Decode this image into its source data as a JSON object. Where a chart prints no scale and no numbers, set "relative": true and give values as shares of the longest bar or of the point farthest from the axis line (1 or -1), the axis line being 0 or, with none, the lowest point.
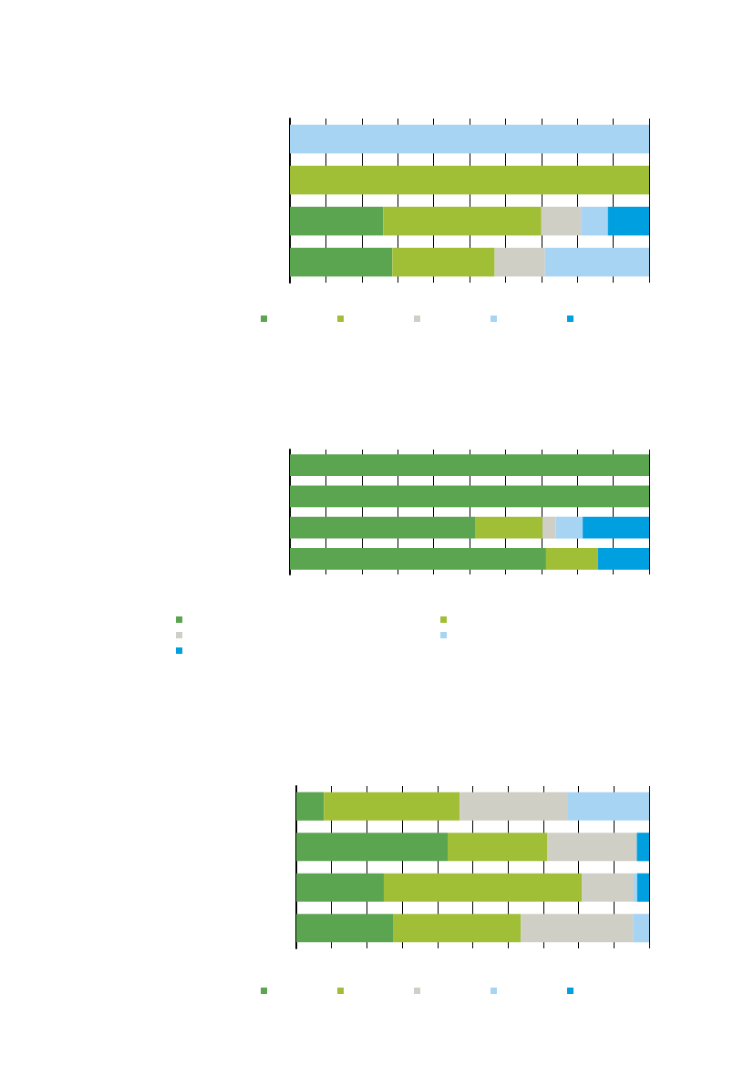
{
  "chart_data": [
    {
      "type": "bar",
      "orientation": "horizontal",
      "stacked": true,
      "relative": true,
      "grid": "x",
      "categories": [
        null,
        null,
        null,
        null
      ],
      "series": [
        {
          "color": "#5ca550",
          "values": [
            0,
            0,
            0.26,
            0.285
          ]
        },
        {
          "color": "#a0be36",
          "values": [
            0,
            1,
            0.44,
            0.285
          ]
        },
        {
          "color": "#cfcfc5",
          "values": [
            0,
            0,
            0.11,
            0.14
          ]
        },
        {
          "color": "#a8d4f4",
          "values": [
            1,
            0,
            0.075,
            0.29
          ]
        },
        {
          "color": "#009fe0",
          "values": [
            0,
            0,
            0.115,
            0
          ]
        }
      ]
    },
    {
      "type": "bar",
      "orientation": "horizontal",
      "stacked": true,
      "relative": true,
      "grid": "x",
      "categories": [
        null,
        null,
        null,
        null
      ],
      "series": [
        {
          "color": "#5ca550",
          "values": [
            1,
            1,
            0.517,
            0.713
          ]
        },
        {
          "color": "#a0be36",
          "values": [
            0,
            0,
            0.186,
            0.144
          ]
        },
        {
          "color": "#cfcfc5",
          "values": [
            0,
            0,
            0.037,
            0
          ]
        },
        {
          "color": "#a8d4f4",
          "values": [
            0,
            0,
            0.075,
            0
          ]
        },
        {
          "color": "#009fe0",
          "values": [
            0,
            0,
            0.185,
            0.143
          ]
        }
      ]
    },
    {
      "type": "bar",
      "orientation": "horizontal",
      "stacked": true,
      "relative": true,
      "grid": "x",
      "categories": [
        null,
        null,
        null,
        null
      ],
      "series": [
        {
          "color": "#5ca550",
          "values": [
            0.078,
            0.429,
            0.248,
            0.274
          ]
        },
        {
          "color": "#a0be36",
          "values": [
            0.385,
            0.283,
            0.561,
            0.362
          ]
        },
        {
          "color": "#cfcfc5",
          "values": [
            0.307,
            0.253,
            0.147,
            0.318
          ]
        },
        {
          "color": "#a8d4f4",
          "values": [
            0.23,
            0,
            0.01,
            0.046
          ]
        },
        {
          "color": "#009fe0",
          "values": [
            0,
            0.035,
            0.034,
            0
          ]
        }
      ]
    }
  ]
}
